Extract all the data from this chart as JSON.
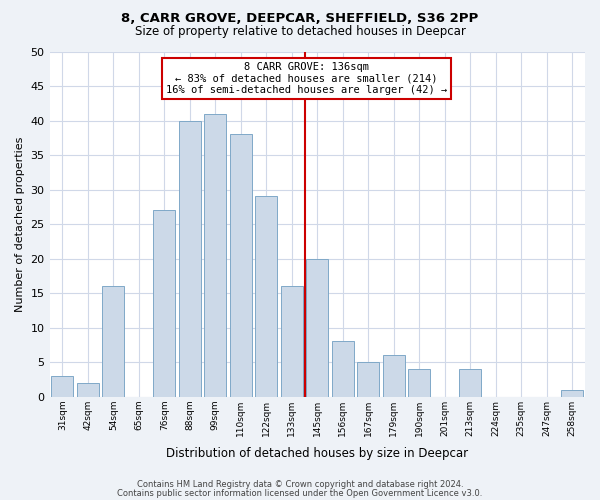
{
  "title": "8, CARR GROVE, DEEPCAR, SHEFFIELD, S36 2PP",
  "subtitle": "Size of property relative to detached houses in Deepcar",
  "xlabel": "Distribution of detached houses by size in Deepcar",
  "ylabel": "Number of detached properties",
  "bar_color": "#ccd9e8",
  "bar_edgecolor": "#7fa8c8",
  "bin_labels": [
    "31sqm",
    "42sqm",
    "54sqm",
    "65sqm",
    "76sqm",
    "88sqm",
    "99sqm",
    "110sqm",
    "122sqm",
    "133sqm",
    "145sqm",
    "156sqm",
    "167sqm",
    "179sqm",
    "190sqm",
    "201sqm",
    "213sqm",
    "224sqm",
    "235sqm",
    "247sqm",
    "258sqm"
  ],
  "bar_heights": [
    3,
    2,
    16,
    0,
    27,
    40,
    41,
    38,
    29,
    16,
    20,
    8,
    5,
    6,
    4,
    0,
    4,
    0,
    0,
    0,
    1
  ],
  "ylim": [
    0,
    50
  ],
  "yticks": [
    0,
    5,
    10,
    15,
    20,
    25,
    30,
    35,
    40,
    45,
    50
  ],
  "property_line_bin": 9.5,
  "annotation_title": "8 CARR GROVE: 136sqm",
  "annotation_line1": "← 83% of detached houses are smaller (214)",
  "annotation_line2": "16% of semi-detached houses are larger (42) →",
  "annotation_box_color": "#ffffff",
  "annotation_box_edgecolor": "#cc0000",
  "property_line_color": "#cc0000",
  "footer1": "Contains HM Land Registry data © Crown copyright and database right 2024.",
  "footer2": "Contains public sector information licensed under the Open Government Licence v3.0.",
  "background_color": "#eef2f7",
  "plot_background": "#ffffff",
  "grid_color": "#d0d8e8"
}
